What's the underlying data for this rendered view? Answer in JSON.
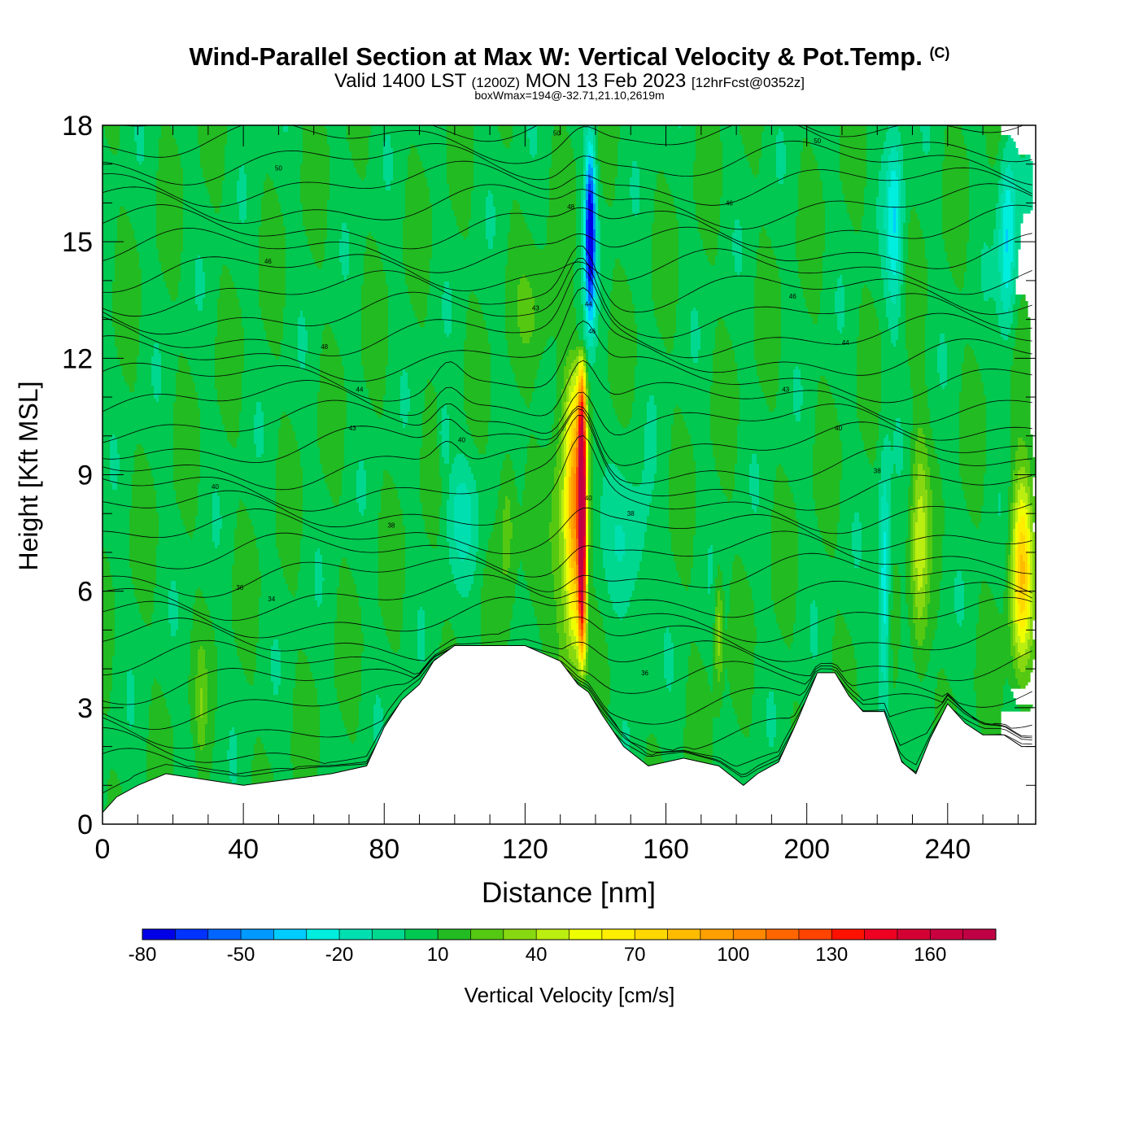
{
  "header": {
    "title": "Wind-Parallel Section at Max W: Vertical Velocity & Pot.Temp.",
    "copyright": "(C)",
    "valid_prefix": "Valid 1400 LST",
    "valid_utc": "(1200Z)",
    "valid_date": "MON 13 Feb 2023",
    "forecast": "[12hrFcst@0352z]",
    "boxwmax": "boxWmax=194@-32.71,21.10,2619m"
  },
  "chart_data": {
    "type": "heatmap",
    "title": "Wind-Parallel Section at Max W: Vertical Velocity & Pot.Temp.",
    "xlabel": "Distance [nm]",
    "ylabel": "Height [Kft MSL]",
    "xlim": [
      0,
      265
    ],
    "ylim": [
      0,
      18
    ],
    "xticks": [
      0,
      40,
      80,
      120,
      160,
      200,
      240
    ],
    "yticks": [
      0,
      3,
      6,
      9,
      12,
      15,
      18
    ],
    "colorbar": {
      "label": "Vertical Velocity [cm/s]",
      "range": [
        -80,
        180
      ],
      "step": 10,
      "tick_labels": [
        "-80",
        "-50",
        "-20",
        "10",
        "40",
        "70",
        "100",
        "130",
        "160"
      ],
      "tick_values": [
        -80,
        -50,
        -20,
        10,
        40,
        70,
        100,
        130,
        160
      ],
      "colors": [
        "#0000e6",
        "#0033ff",
        "#0066ff",
        "#0099ff",
        "#00ccff",
        "#00eedd",
        "#00dfb0",
        "#00d890",
        "#00c850",
        "#22bb22",
        "#55c811",
        "#88d811",
        "#bbee11",
        "#eeff00",
        "#ffee00",
        "#ffd800",
        "#ffbb00",
        "#ffa000",
        "#ff8800",
        "#ff6600",
        "#ff4400",
        "#ff1100",
        "#ee0022",
        "#d40033",
        "#c80040",
        "#c00044"
      ]
    },
    "terrain": {
      "distance_nm": [
        0,
        4,
        10,
        18,
        40,
        65,
        75,
        80,
        85,
        90,
        94,
        100,
        108,
        120,
        130,
        135,
        138,
        142,
        148,
        155,
        165,
        175,
        182,
        186,
        192,
        197,
        203,
        208,
        212,
        216,
        222,
        227,
        231,
        235,
        240,
        245,
        250,
        256,
        261,
        265
      ],
      "height_kft": [
        0.3,
        0.7,
        1.0,
        1.3,
        1.0,
        1.3,
        1.5,
        2.5,
        3.2,
        3.6,
        4.2,
        4.6,
        4.6,
        4.6,
        4.2,
        3.6,
        3.4,
        2.8,
        2.0,
        1.5,
        1.7,
        1.5,
        1.0,
        1.3,
        1.6,
        2.6,
        3.9,
        3.9,
        3.3,
        2.9,
        2.9,
        1.6,
        1.3,
        2.2,
        3.1,
        2.6,
        2.3,
        2.3,
        2.0,
        2.0
      ]
    },
    "vertical_velocity_features_cm_s": [
      {
        "x_nm": 136,
        "z_kft": 9,
        "w": 175
      },
      {
        "x_nm": 134,
        "z_kft": 9,
        "w": 90
      },
      {
        "x_nm": 138,
        "z_kft": 15,
        "w": -80
      },
      {
        "x_nm": 261,
        "z_kft": 6,
        "w": 75
      },
      {
        "x_nm": 232,
        "z_kft": 7,
        "w": 45
      },
      {
        "x_nm": 222,
        "z_kft": 6,
        "w": -25
      },
      {
        "x_nm": 224,
        "z_kft": 15,
        "w": -25
      },
      {
        "x_nm": 257,
        "z_kft": 15,
        "w": -30
      },
      {
        "x_nm": 150,
        "z_kft": 7,
        "w": -10
      },
      {
        "x_nm": 175,
        "z_kft": 5,
        "w": 40
      },
      {
        "x_nm": 115,
        "z_kft": 8,
        "w": 30
      },
      {
        "x_nm": 102,
        "z_kft": 8,
        "w": -10
      },
      {
        "x_nm": 28,
        "z_kft": 3,
        "w": 25
      },
      {
        "x_nm": 124,
        "z_kft": 13,
        "w": 20
      },
      {
        "x_nm": 97,
        "z_kft": 10,
        "w": -20
      }
    ],
    "isentrope_labels": [
      {
        "text": "50",
        "x_nm": 129,
        "z_kft": 17.8
      },
      {
        "text": "50",
        "x_nm": 203,
        "z_kft": 17.6
      },
      {
        "text": "50",
        "x_nm": 50,
        "z_kft": 16.9
      },
      {
        "text": "48",
        "x_nm": 133,
        "z_kft": 15.9
      },
      {
        "text": "46",
        "x_nm": 178,
        "z_kft": 16.0
      },
      {
        "text": "46",
        "x_nm": 47,
        "z_kft": 14.5
      },
      {
        "text": "46",
        "x_nm": 196,
        "z_kft": 13.6
      },
      {
        "text": "44",
        "x_nm": 138,
        "z_kft": 13.4
      },
      {
        "text": "43",
        "x_nm": 123,
        "z_kft": 13.3
      },
      {
        "text": "46",
        "x_nm": 139,
        "z_kft": 12.7
      },
      {
        "text": "48",
        "x_nm": 63,
        "z_kft": 12.3
      },
      {
        "text": "44",
        "x_nm": 211,
        "z_kft": 12.4
      },
      {
        "text": "44",
        "x_nm": 73,
        "z_kft": 11.2
      },
      {
        "text": "43",
        "x_nm": 194,
        "z_kft": 11.2
      },
      {
        "text": "43",
        "x_nm": 71,
        "z_kft": 10.2
      },
      {
        "text": "40",
        "x_nm": 102,
        "z_kft": 9.9
      },
      {
        "text": "40",
        "x_nm": 209,
        "z_kft": 10.2
      },
      {
        "text": "38",
        "x_nm": 220,
        "z_kft": 9.1
      },
      {
        "text": "40",
        "x_nm": 32,
        "z_kft": 8.7
      },
      {
        "text": "40",
        "x_nm": 138,
        "z_kft": 8.4
      },
      {
        "text": "38",
        "x_nm": 150,
        "z_kft": 8.0
      },
      {
        "text": "38",
        "x_nm": 82,
        "z_kft": 7.7
      },
      {
        "text": "36",
        "x_nm": 39,
        "z_kft": 6.1
      },
      {
        "text": "34",
        "x_nm": 48,
        "z_kft": 5.8
      },
      {
        "text": "36",
        "x_nm": 154,
        "z_kft": 3.9
      }
    ]
  }
}
